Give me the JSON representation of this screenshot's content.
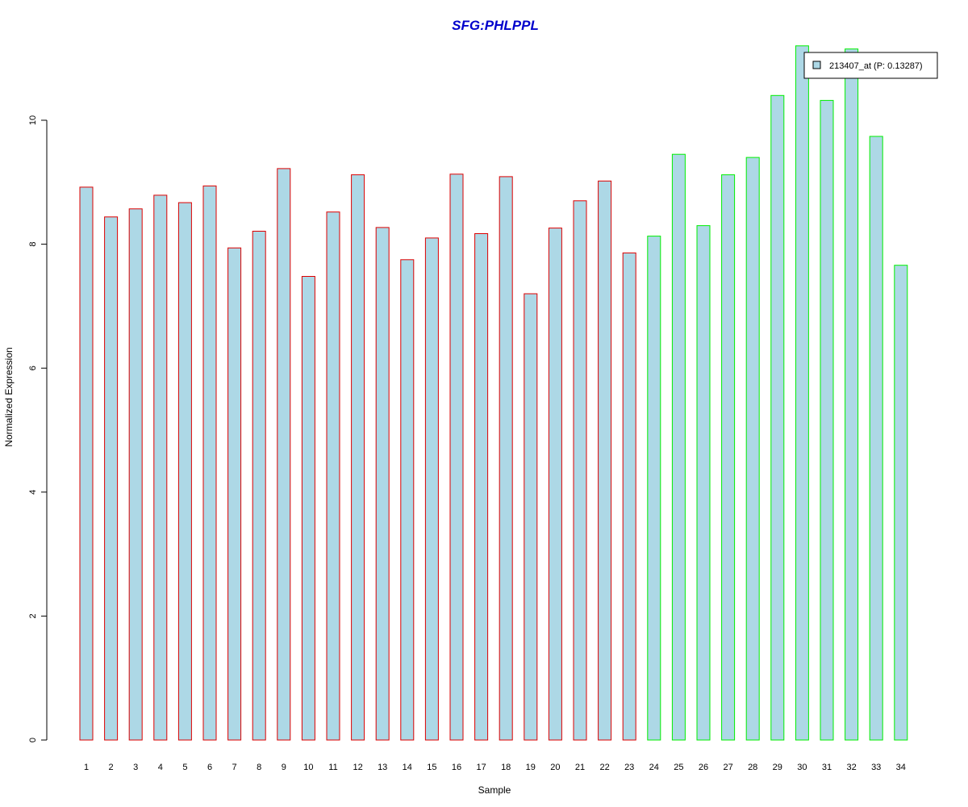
{
  "chart_data": {
    "type": "bar",
    "title": "SFG:PHLPPL",
    "title_color": "#0000CC",
    "xlabel": "Sample",
    "ylabel": "Normalized Expression",
    "ylim": [
      0,
      11.2
    ],
    "y_ticks": [
      0,
      2,
      4,
      6,
      8,
      10
    ],
    "grid": false,
    "legend_position": "top-right",
    "bar_fill": "#ADD8E6",
    "categories": [
      "1",
      "2",
      "3",
      "4",
      "5",
      "6",
      "7",
      "8",
      "9",
      "10",
      "11",
      "12",
      "13",
      "14",
      "15",
      "16",
      "17",
      "18",
      "19",
      "20",
      "21",
      "22",
      "23",
      "24",
      "25",
      "26",
      "27",
      "28",
      "29",
      "30",
      "31",
      "32",
      "33",
      "34"
    ],
    "series": [
      {
        "name": "213407_at (P: 0.13287)",
        "values": [
          8.92,
          8.44,
          8.57,
          8.79,
          8.67,
          8.94,
          7.94,
          8.21,
          9.22,
          7.48,
          8.52,
          9.12,
          8.27,
          7.75,
          8.1,
          9.13,
          8.17,
          9.09,
          7.2,
          8.26,
          8.7,
          9.02,
          7.86,
          8.13,
          9.45,
          8.3,
          9.12,
          9.4,
          10.4,
          11.2,
          10.32,
          11.15,
          9.74,
          7.66
        ]
      }
    ],
    "groups": [
      {
        "samples": [
          1,
          23
        ],
        "border_color": "#DD0000"
      },
      {
        "samples": [
          24,
          34
        ],
        "border_color": "#00EE00"
      }
    ]
  }
}
